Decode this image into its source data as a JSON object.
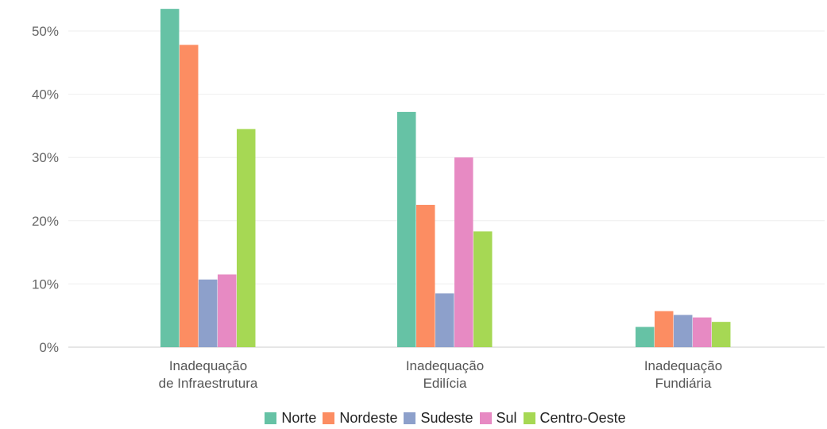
{
  "chart_data": {
    "type": "bar",
    "categories": [
      [
        "Inadequação",
        "de Infraestrutura"
      ],
      [
        "Inadequação",
        "Edilícia"
      ],
      [
        "Inadequação",
        "Fundiária"
      ]
    ],
    "series": [
      {
        "name": "Norte",
        "color": "#66c2a5",
        "values": [
          53.5,
          37.2,
          3.2
        ]
      },
      {
        "name": "Nordeste",
        "color": "#fc8d62",
        "values": [
          47.8,
          22.5,
          5.7
        ]
      },
      {
        "name": "Sudeste",
        "color": "#8da0cb",
        "values": [
          10.7,
          8.5,
          5.1
        ]
      },
      {
        "name": "Sul",
        "color": "#e78ac3",
        "values": [
          11.5,
          30.0,
          4.7
        ]
      },
      {
        "name": "Centro-Oeste",
        "color": "#a6d854",
        "values": [
          34.5,
          18.3,
          4.0
        ]
      }
    ],
    "yticks": [
      "0%",
      "10%",
      "20%",
      "30%",
      "40%",
      "50%"
    ],
    "ylim": [
      0,
      55
    ],
    "legend_position": "bottom",
    "grid": true
  }
}
